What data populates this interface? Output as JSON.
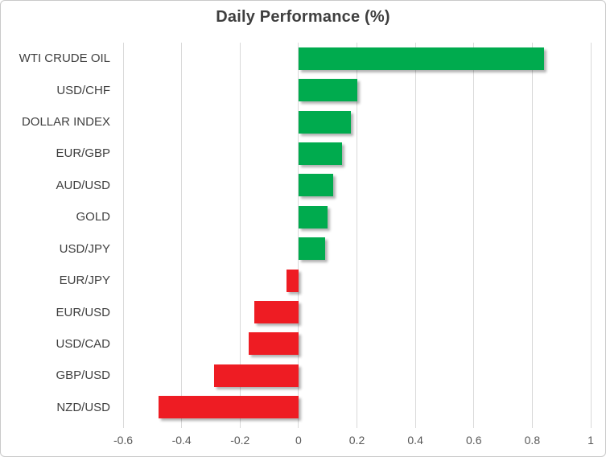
{
  "chart_data": {
    "type": "bar",
    "orientation": "horizontal",
    "title": "Daily Performance (%)",
    "categories": [
      "WTI CRUDE OIL",
      "USD/CHF",
      "DOLLAR INDEX",
      "EUR/GBP",
      "AUD/USD",
      "GOLD",
      "USD/JPY",
      "EUR/JPY",
      "EUR/USD",
      "USD/CAD",
      "GBP/USD",
      "NZD/USD"
    ],
    "values": [
      0.84,
      0.2,
      0.18,
      0.15,
      0.12,
      0.1,
      0.09,
      -0.04,
      -0.15,
      -0.17,
      -0.29,
      -0.48
    ],
    "xlim": [
      -0.6,
      1.0
    ],
    "x_ticks": [
      -0.6,
      -0.4,
      -0.2,
      0,
      0.2,
      0.4,
      0.6,
      0.8,
      1
    ],
    "x_tick_labels": [
      "-0.6",
      "-0.4",
      "-0.2",
      "0",
      "0.2",
      "0.4",
      "0.6",
      "0.8",
      "1"
    ],
    "grid": true,
    "legend": false,
    "xlabel": "",
    "ylabel": "",
    "colors": {
      "positive": "#00AB4E",
      "negative": "#EE1C23",
      "gridline": "#D9D9D9",
      "zero_line": "#D9D9D9",
      "tick_text": "#595959",
      "category_text": "#404040",
      "title_text": "#3F3F3F",
      "border": "#C9C9C9",
      "background": "#FFFFFF"
    }
  }
}
